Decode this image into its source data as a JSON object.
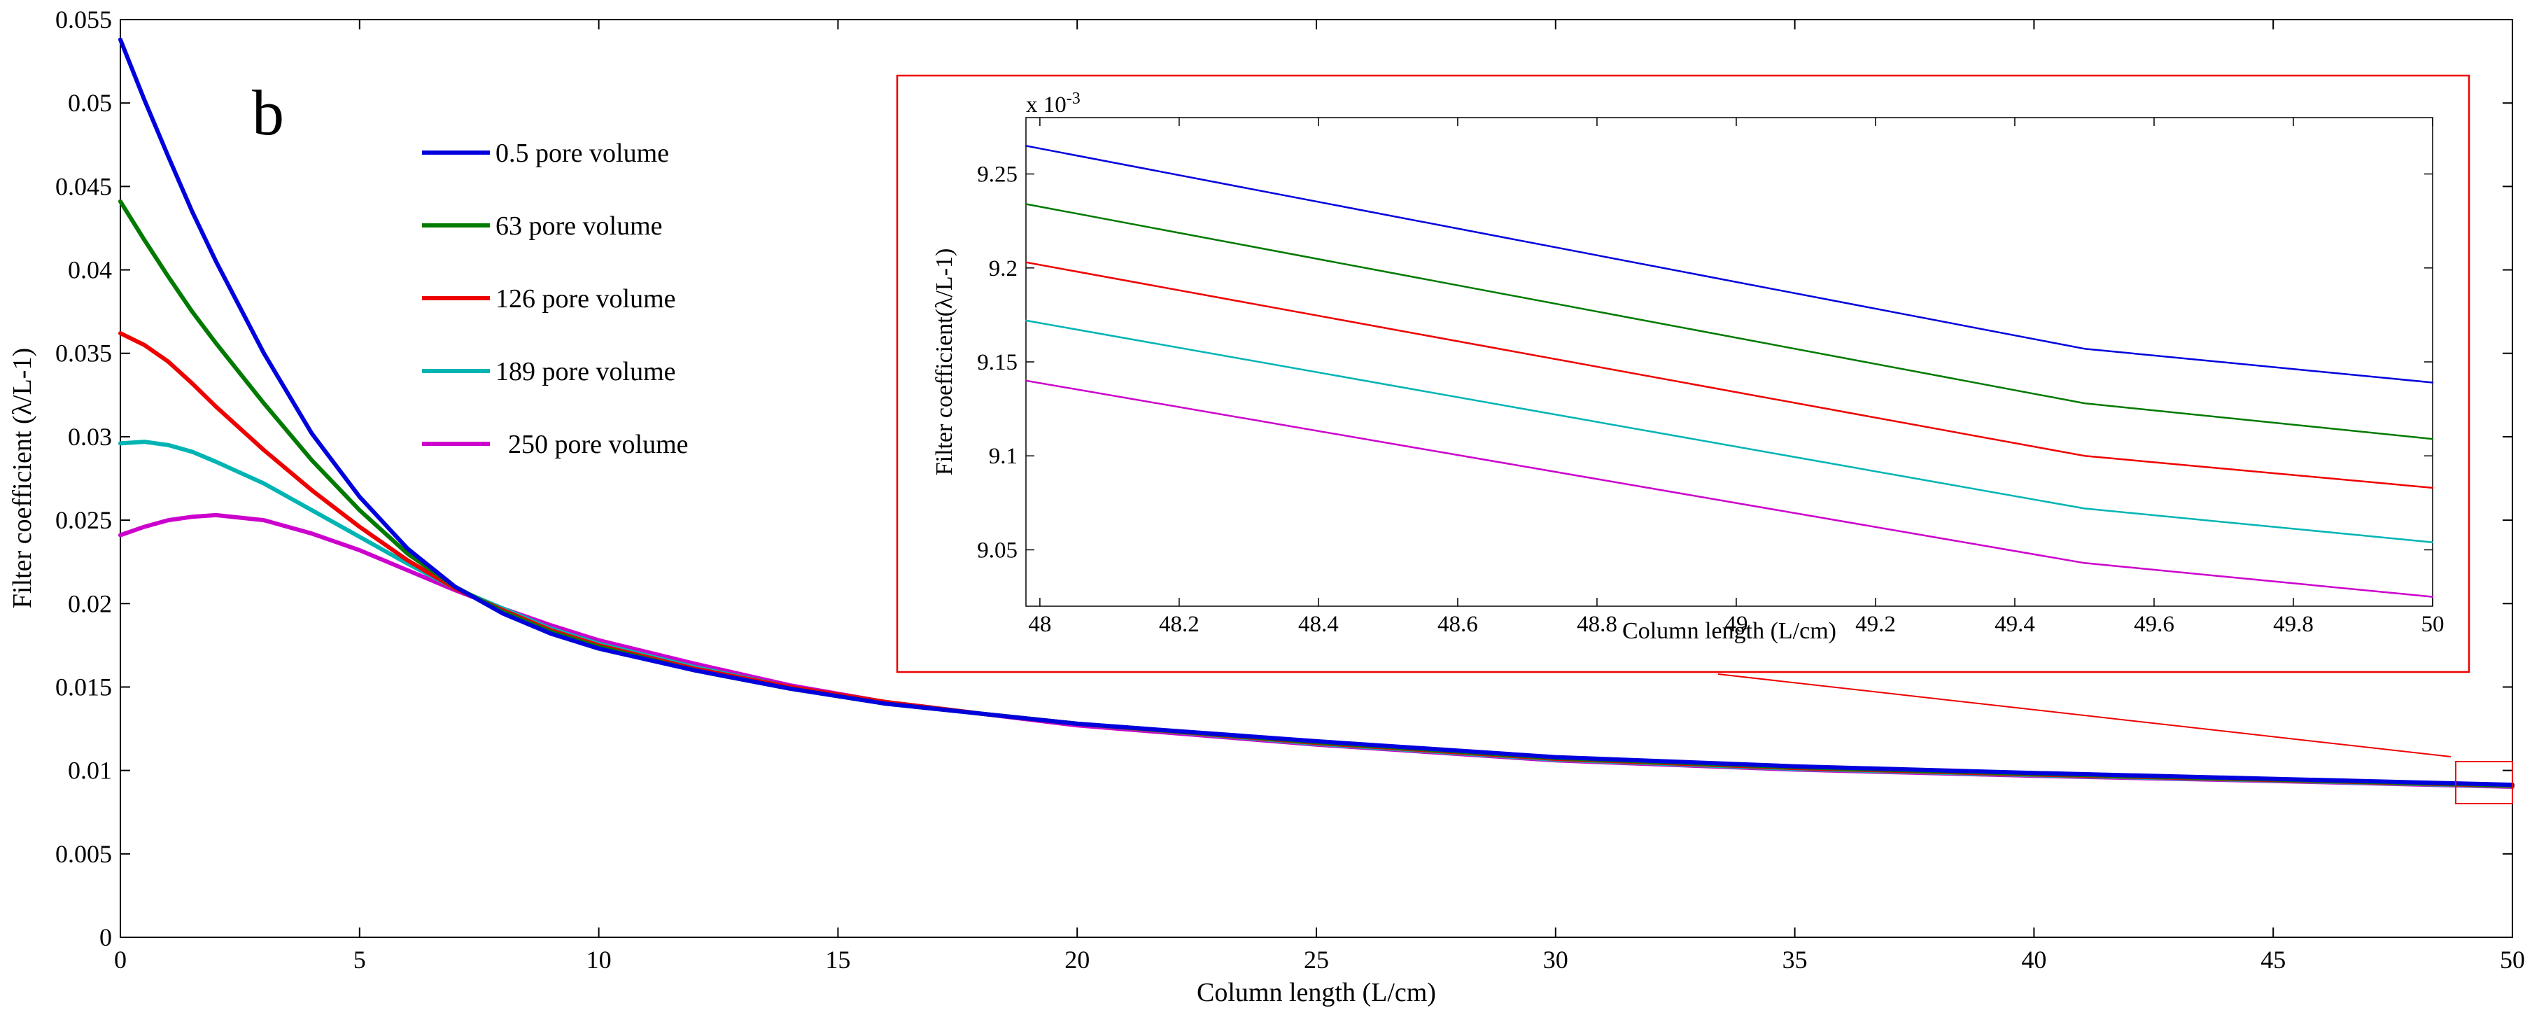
{
  "panel_label": "b",
  "chart_data": [
    {
      "type": "line",
      "title": "",
      "xlabel": "Column length (L/cm)",
      "ylabel": "Filter coefficient (λ/L-1)",
      "xlim": [
        0,
        50
      ],
      "ylim": [
        0,
        0.055
      ],
      "xticks": [
        0,
        5,
        10,
        15,
        20,
        25,
        30,
        35,
        40,
        45,
        50
      ],
      "xtick_labels": [
        "0",
        "5",
        "10",
        "15",
        "20",
        "25",
        "30",
        "35",
        "40",
        "45",
        "50"
      ],
      "yticks": [
        0,
        0.005,
        0.01,
        0.015,
        0.02,
        0.025,
        0.03,
        0.035,
        0.04,
        0.045,
        0.05,
        0.055
      ],
      "ytick_labels": [
        "0",
        "0.005",
        "0.01",
        "0.015",
        "0.02",
        "0.025",
        "0.03",
        "0.035",
        "0.04",
        "0.045",
        "0.05",
        "0.055"
      ],
      "grid": false,
      "legend_position": "top-left",
      "x": [
        0,
        0.5,
        1,
        1.5,
        2,
        3,
        4,
        5,
        6,
        7,
        8,
        9,
        10,
        12,
        14,
        16,
        18,
        20,
        25,
        30,
        35,
        40,
        45,
        50
      ],
      "series": [
        {
          "name": "0.5 pore volume",
          "color": "#0000dd",
          "values": [
            0.0538,
            0.0502,
            0.0468,
            0.0435,
            0.0405,
            0.035,
            0.0302,
            0.0264,
            0.0233,
            0.021,
            0.0194,
            0.0182,
            0.0173,
            0.016,
            0.0149,
            0.014,
            0.0134,
            0.0128,
            0.01175,
            0.0108,
            0.01025,
            0.00985,
            0.0095,
            0.00914
          ]
        },
        {
          "name": "63 pore volume",
          "color": "#007a00",
          "values": [
            0.0441,
            0.0418,
            0.0396,
            0.0375,
            0.0356,
            0.032,
            0.0286,
            0.0256,
            0.023,
            0.021,
            0.0195,
            0.0183,
            0.0174,
            0.016,
            0.0149,
            0.014,
            0.0134,
            0.0128,
            0.0117,
            0.01075,
            0.0102,
            0.0098,
            0.00946,
            0.00911
          ]
        },
        {
          "name": "126 pore volume",
          "color": "#ee0000",
          "values": [
            0.0362,
            0.0355,
            0.0345,
            0.0332,
            0.0318,
            0.0292,
            0.0268,
            0.0246,
            0.0226,
            0.0209,
            0.0196,
            0.0184,
            0.0175,
            0.0161,
            0.015,
            0.0141,
            0.0134,
            0.0128,
            0.01165,
            0.0107,
            0.01015,
            0.00976,
            0.00943,
            0.00908
          ]
        },
        {
          "name": "189 pore volume",
          "color": "#00b4b4",
          "values": [
            0.0296,
            0.0297,
            0.0295,
            0.0291,
            0.0285,
            0.0272,
            0.0256,
            0.024,
            0.0224,
            0.0209,
            0.0197,
            0.0185,
            0.0176,
            0.0162,
            0.015,
            0.0141,
            0.0134,
            0.0128,
            0.0116,
            0.01065,
            0.0101,
            0.00972,
            0.0094,
            0.00905
          ]
        },
        {
          "name": "250 pore volume",
          "color": "#cc00cc",
          "values": [
            0.0241,
            0.0246,
            0.025,
            0.0252,
            0.0253,
            0.025,
            0.0242,
            0.0232,
            0.022,
            0.0208,
            0.0197,
            0.0187,
            0.0178,
            0.0164,
            0.0151,
            0.0141,
            0.0134,
            0.0127,
            0.01155,
            0.0106,
            0.01005,
            0.00968,
            0.00937,
            0.00902
          ]
        }
      ],
      "zoom_region": {
        "xlim": [
          49,
          50
        ],
        "ylim": [
          0.008,
          0.0105
        ]
      }
    },
    {
      "type": "line",
      "title": "",
      "xlabel": "Column length (L/cm)",
      "ylabel": "Filter coefficient(λ/L-1)",
      "scale_label": "x 10-3",
      "scale_base": "x 10",
      "scale_exponent": "-3",
      "xlim": [
        47.98,
        50
      ],
      "ylim": [
        9.02,
        9.28
      ],
      "xticks": [
        48,
        48.2,
        48.4,
        48.6,
        48.8,
        49,
        49.2,
        49.4,
        49.6,
        49.8,
        50
      ],
      "xtick_labels": [
        "48",
        "48.2",
        "48.4",
        "48.6",
        "48.8",
        "49",
        "49.2",
        "49.4",
        "49.6",
        "49.8",
        "50"
      ],
      "yticks": [
        9.05,
        9.1,
        9.15,
        9.2,
        9.25
      ],
      "ytick_labels": [
        "9.05",
        "9.1",
        "9.15",
        "9.2",
        "9.25"
      ],
      "grid": false,
      "x": [
        47.98,
        49.5,
        50
      ],
      "series": [
        {
          "color": "#0000dd",
          "values": [
            9.265,
            9.157,
            9.139
          ]
        },
        {
          "color": "#007a00",
          "values": [
            9.234,
            9.128,
            9.109
          ]
        },
        {
          "color": "#ee0000",
          "values": [
            9.203,
            9.1,
            9.083
          ]
        },
        {
          "color": "#00b4b4",
          "values": [
            9.172,
            9.072,
            9.054
          ]
        },
        {
          "color": "#cc00cc",
          "values": [
            9.14,
            9.043,
            9.025
          ]
        }
      ]
    }
  ]
}
